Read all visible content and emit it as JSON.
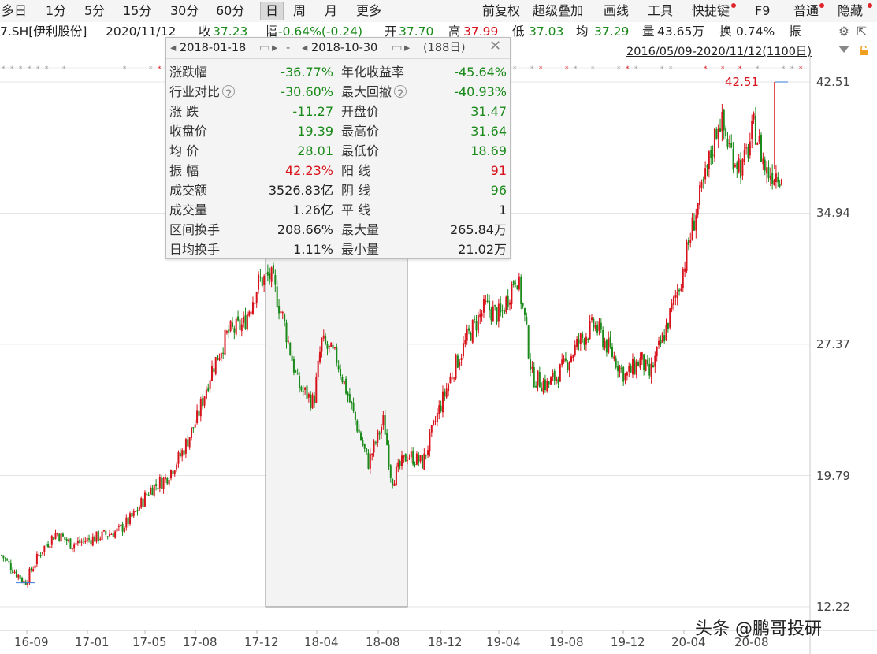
{
  "toolbar": {
    "periods": [
      "多日",
      "1分",
      "5分",
      "15分",
      "30分",
      "60分",
      "日",
      "周",
      "月",
      "更多"
    ],
    "active_period": "日",
    "tools": [
      "前复权",
      "超级叠加",
      "画线",
      "工具",
      "快捷键",
      "F9",
      "普通",
      "隐藏"
    ]
  },
  "infobar": {
    "code": "7.SH[伊利股份]",
    "date": "2020/11/12",
    "close_label": "收",
    "close_value": "37.23",
    "change_label": "幅",
    "change_value": "-0.64%(-0.24)",
    "open_label": "开",
    "open_value": "37.70",
    "high_label": "高",
    "high_value": "37.99",
    "low_label": "低",
    "low_value": "37.03",
    "avg_label": "均",
    "avg_value": "37.29",
    "volume_label": "量",
    "volume_value": "43.65万",
    "turnover_label": "换",
    "turnover_value": "0.74%",
    "amplitude_label": "振"
  },
  "date_range": "2016/05/09-2020/11/12(1100日)",
  "tooltip": {
    "start_date": "2018-01-18",
    "end_date": "2018-10-30",
    "separator": "-",
    "days": "(188日)",
    "rows": [
      {
        "l1": "涨跌幅",
        "v1": "-36.77%",
        "c1": "green",
        "l2": "年化收益率",
        "v2": "-45.64%",
        "c2": "green"
      },
      {
        "l1": "行业对比",
        "v1": "-30.60%",
        "c1": "green",
        "l2": "最大回撤",
        "v2": "-40.93%",
        "c2": "green",
        "q1": true,
        "q2": true
      },
      {
        "l1": "涨 跌",
        "v1": "-11.27",
        "c1": "green",
        "l2": "开盘价",
        "v2": "31.47",
        "c2": "green"
      },
      {
        "l1": "收盘价",
        "v1": "19.39",
        "c1": "green",
        "l2": "最高价",
        "v2": "31.64",
        "c2": "green"
      },
      {
        "l1": "均 价",
        "v1": "28.01",
        "c1": "green",
        "l2": "最低价",
        "v2": "18.69",
        "c2": "green"
      },
      {
        "l1": "振 幅",
        "v1": "42.23%",
        "c1": "red",
        "l2": "阳 线",
        "v2": "91",
        "c2": "red"
      },
      {
        "l1": "成交额",
        "v1": "3526.83亿",
        "c1": "dark",
        "l2": "阴 线",
        "v2": "96",
        "c2": "green"
      },
      {
        "l1": "成交量",
        "v1": "1.26亿",
        "c1": "dark",
        "l2": "平 线",
        "v2": "1",
        "c2": "dark"
      },
      {
        "l1": "区间换手",
        "v1": "208.66%",
        "c1": "dark",
        "l2": "最大量",
        "v2": "265.84万",
        "c2": "dark"
      },
      {
        "l1": "日均换手",
        "v1": "1.11%",
        "c1": "dark",
        "l2": "最小量",
        "v2": "21.02万",
        "c2": "dark"
      }
    ]
  },
  "chart_data": {
    "type": "candlestick",
    "y_ticks": [
      "42.51",
      "34.94",
      "27.37",
      "19.79",
      "12.22"
    ],
    "ylim": [
      12.22,
      42.51
    ],
    "x_ticks": [
      "16-09",
      "17-01",
      "17-05",
      "17-08",
      "17-12",
      "18-04",
      "18-08",
      "18-12",
      "19-04",
      "19-08",
      "19-12",
      "20-04",
      "20-08"
    ],
    "max_label": "42.51",
    "selection": {
      "start": "2018-01-18",
      "end": "2018-10-30"
    },
    "approx_close_path": [
      [
        0,
        15.2
      ],
      [
        0.02,
        14.1
      ],
      [
        0.03,
        13.6
      ],
      [
        0.05,
        15.4
      ],
      [
        0.07,
        16.5
      ],
      [
        0.09,
        15.8
      ],
      [
        0.12,
        16.2
      ],
      [
        0.15,
        16.6
      ],
      [
        0.17,
        17.5
      ],
      [
        0.19,
        19.0
      ],
      [
        0.21,
        19.6
      ],
      [
        0.23,
        21.0
      ],
      [
        0.25,
        23.0
      ],
      [
        0.27,
        26.0
      ],
      [
        0.29,
        28.0
      ],
      [
        0.31,
        28.5
      ],
      [
        0.33,
        31.0
      ],
      [
        0.345,
        31.3
      ],
      [
        0.36,
        29.0
      ],
      [
        0.38,
        25.0
      ],
      [
        0.4,
        24.0
      ],
      [
        0.41,
        27.5
      ],
      [
        0.43,
        26.5
      ],
      [
        0.45,
        23.5
      ],
      [
        0.47,
        20.5
      ],
      [
        0.49,
        23.0
      ],
      [
        0.5,
        19.5
      ],
      [
        0.52,
        21.0
      ],
      [
        0.54,
        20.5
      ],
      [
        0.56,
        23.5
      ],
      [
        0.58,
        26.0
      ],
      [
        0.6,
        28.0
      ],
      [
        0.62,
        29.5
      ],
      [
        0.64,
        29.0
      ],
      [
        0.66,
        31.5
      ],
      [
        0.67,
        29.0
      ],
      [
        0.68,
        25.5
      ],
      [
        0.7,
        25.0
      ],
      [
        0.72,
        26.0
      ],
      [
        0.74,
        27.5
      ],
      [
        0.76,
        28.5
      ],
      [
        0.78,
        27.0
      ],
      [
        0.8,
        25.5
      ],
      [
        0.82,
        26.5
      ],
      [
        0.83,
        25.5
      ],
      [
        0.85,
        28.0
      ],
      [
        0.87,
        31.0
      ],
      [
        0.89,
        35.0
      ],
      [
        0.9,
        36.5
      ],
      [
        0.92,
        40.5
      ],
      [
        0.935,
        38.5
      ],
      [
        0.95,
        37.5
      ],
      [
        0.965,
        40.0
      ],
      [
        0.98,
        37.3
      ]
    ],
    "watermark": "头条 @鹏哥投研"
  }
}
